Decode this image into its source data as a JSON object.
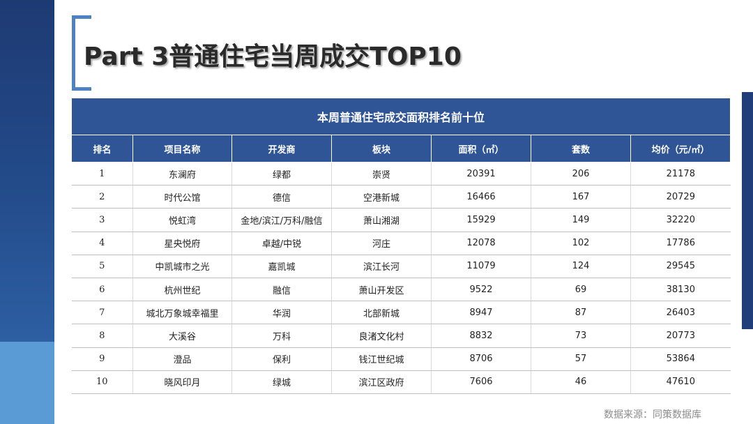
{
  "page": {
    "title": "Part 3普通住宅当周成交TOP10",
    "source_note": "数据来源：同策数据库"
  },
  "colors": {
    "header_bg": "#2f5597",
    "accent_bracket": "#4f82c4",
    "left_bar_dark": "#234b8a",
    "left_bar_light": "#5b9bd5"
  },
  "table": {
    "caption": "本周普通住宅成交面积排名前十位",
    "headers": [
      "排名",
      "项目名称",
      "开发商",
      "板块",
      "面积（㎡）",
      "套数",
      "均价（元/㎡）"
    ],
    "rows": [
      [
        "1",
        "东澜府",
        "绿都",
        "崇贤",
        "20391",
        "206",
        "21178"
      ],
      [
        "2",
        "时代公馆",
        "德信",
        "空港新城",
        "16466",
        "167",
        "20729"
      ],
      [
        "3",
        "悦虹湾",
        "金地/滨江/万科/融信",
        "萧山湘湖",
        "15929",
        "149",
        "32220"
      ],
      [
        "4",
        "星央悦府",
        "卓越/中锐",
        "河庄",
        "12078",
        "102",
        "17786"
      ],
      [
        "5",
        "中凯城市之光",
        "嘉凯城",
        "滨江长河",
        "11079",
        "124",
        "29545"
      ],
      [
        "6",
        "杭州世纪",
        "融信",
        "萧山开发区",
        "9522",
        "69",
        "38130"
      ],
      [
        "7",
        "城北万象城幸福里",
        "华润",
        "北部新城",
        "8947",
        "87",
        "26403"
      ],
      [
        "8",
        "大溪谷",
        "万科",
        "良渚文化村",
        "8832",
        "73",
        "20773"
      ],
      [
        "9",
        "澄品",
        "保利",
        "钱江世纪城",
        "8706",
        "57",
        "53864"
      ],
      [
        "10",
        "晓风印月",
        "绿城",
        "滨江区政府",
        "7606",
        "46",
        "47610"
      ]
    ]
  }
}
